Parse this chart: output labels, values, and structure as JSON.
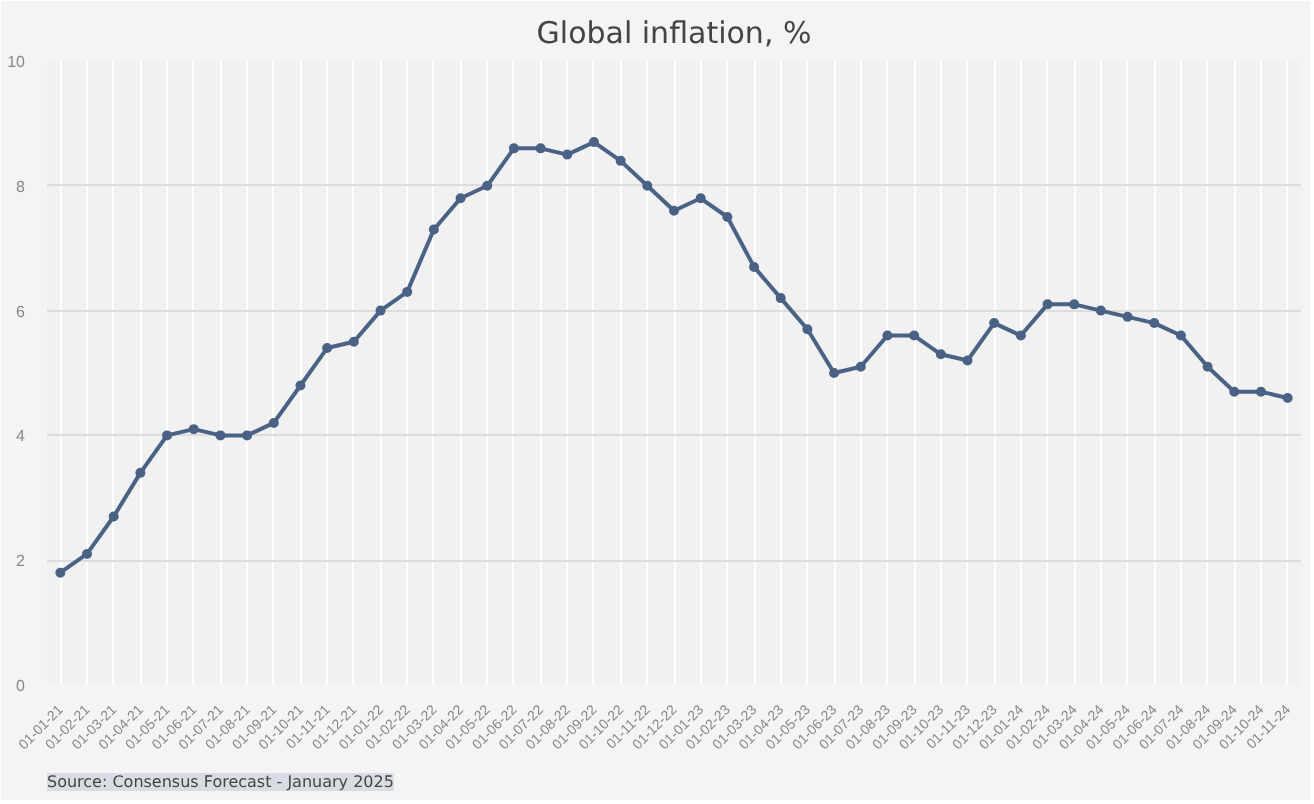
{
  "chart_data": {
    "type": "line",
    "title": "Global inflation, %",
    "categories": [
      "01-01-21",
      "01-02-21",
      "01-03-21",
      "01-04-21",
      "01-05-21",
      "01-06-21",
      "01-07-21",
      "01-08-21",
      "01-09-21",
      "01-10-21",
      "01-11-21",
      "01-12-21",
      "01-01-22",
      "01-02-22",
      "01-03-22",
      "01-04-22",
      "01-05-22",
      "01-06-22",
      "01-07-22",
      "01-08-22",
      "01-09-22",
      "01-10-22",
      "01-11-22",
      "01-12-22",
      "01-01-23",
      "01-02-23",
      "01-03-23",
      "01-04-23",
      "01-05-23",
      "01-06-23",
      "01-07-23",
      "01-08-23",
      "01-09-23",
      "01-10-23",
      "01-11-23",
      "01-12-23",
      "01-01-24",
      "01-02-24",
      "01-03-24",
      "01-04-24",
      "01-05-24",
      "01-06-24",
      "01-07-24",
      "01-08-24",
      "01-09-24",
      "01-10-24",
      "01-11-24"
    ],
    "series": [
      {
        "color": "#4a6285",
        "values": [
          1.8,
          2.1,
          2.7,
          3.4,
          4.0,
          4.1,
          4.0,
          4.0,
          4.2,
          4.8,
          5.4,
          5.5,
          6.0,
          6.3,
          7.3,
          7.8,
          8.0,
          8.6,
          8.6,
          8.5,
          8.7,
          8.4,
          8.0,
          7.6,
          7.8,
          7.5,
          6.7,
          6.2,
          5.7,
          5.0,
          5.1,
          5.6,
          5.6,
          5.3,
          5.2,
          5.8,
          5.6,
          6.1,
          6.1,
          6.0,
          5.9,
          5.8,
          5.6,
          5.1,
          4.7,
          4.7,
          4.6
        ]
      }
    ],
    "ylim": [
      0,
      10
    ],
    "yticks": [
      0,
      2,
      4,
      6,
      8,
      10
    ],
    "grid": true,
    "marker": "circle",
    "line_style": "solid",
    "annotations": [
      "Source: Consensus Forecast - January 2025"
    ]
  }
}
